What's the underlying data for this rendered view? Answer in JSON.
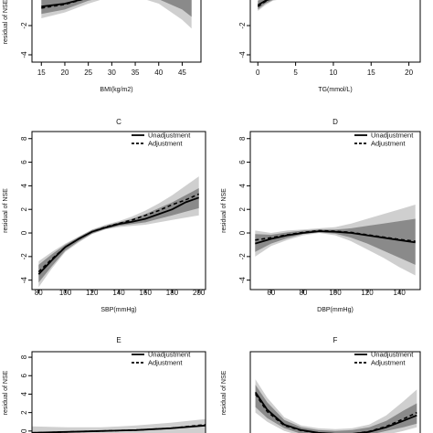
{
  "chart_data": [
    {
      "id": "A",
      "type": "line",
      "title": "",
      "xlabel": "BMI(kg/m2)",
      "ylabel": "residual of NSE",
      "xlim": [
        13,
        49
      ],
      "ylim": [
        -4.5,
        1
      ],
      "xticks": [
        "15",
        "20",
        "25",
        "30",
        "35",
        "40",
        "45"
      ],
      "yticks": [
        "-4",
        "-2",
        "0"
      ],
      "legend": null,
      "series": [
        {
          "name": "Unadjustment",
          "style": "solid",
          "x": [
            15,
            20,
            25,
            30,
            35,
            40,
            45,
            47
          ],
          "y": [
            -0.7,
            -0.5,
            -0.1,
            0.25,
            0.35,
            0.4,
            0.45,
            0.45
          ]
        },
        {
          "name": "Adjustment",
          "style": "dashed",
          "x": [
            15,
            20,
            25,
            30,
            35,
            40,
            45,
            47
          ],
          "y": [
            -0.8,
            -0.55,
            -0.1,
            0.2,
            0.2,
            0.15,
            0.05,
            0.0
          ]
        }
      ],
      "bands": [
        {
          "shade": "light",
          "x": [
            15,
            20,
            25,
            30,
            35,
            40,
            45,
            47
          ],
          "lower": [
            -1.5,
            -1.1,
            -0.5,
            0.0,
            0.0,
            -0.5,
            -1.6,
            -2.2
          ],
          "upper": [
            0.2,
            0.0,
            0.3,
            0.5,
            0.6,
            0.8,
            1.0,
            1.0
          ]
        },
        {
          "shade": "dark",
          "x": [
            15,
            20,
            25,
            30,
            35,
            40,
            45,
            47
          ],
          "lower": [
            -1.2,
            -0.9,
            -0.3,
            0.05,
            0.05,
            -0.2,
            -0.9,
            -1.4
          ],
          "upper": [
            -0.1,
            -0.2,
            0.1,
            0.4,
            0.5,
            0.6,
            0.8,
            0.9
          ]
        }
      ]
    },
    {
      "id": "B",
      "type": "line",
      "title": "",
      "xlabel": "TG(mmol/L)",
      "ylabel": "",
      "xlim": [
        -1,
        21.5
      ],
      "ylim": [
        -4.5,
        1
      ],
      "xticks": [
        "0",
        "5",
        "10",
        "15",
        "20"
      ],
      "yticks": [
        "-4",
        "-2",
        "0"
      ],
      "legend": null,
      "series": [
        {
          "name": "Unadjustment",
          "style": "solid",
          "x": [
            0,
            1,
            2,
            3,
            4,
            5,
            6,
            7,
            8
          ],
          "y": [
            -0.6,
            -0.3,
            -0.1,
            0.0,
            0.1,
            0.2,
            0.25,
            0.3,
            0.3
          ]
        },
        {
          "name": "Adjustment",
          "style": "dashed",
          "x": [
            0,
            1,
            2,
            3,
            4,
            5,
            6,
            7,
            8
          ],
          "y": [
            -0.7,
            -0.35,
            -0.1,
            0.05,
            0.15,
            0.25,
            0.3,
            0.35,
            0.35
          ]
        }
      ],
      "bands": [
        {
          "shade": "light",
          "x": [
            0,
            1,
            2,
            3,
            4,
            5,
            6,
            7,
            8
          ],
          "lower": [
            -1.0,
            -0.6,
            -0.3,
            -0.2,
            -0.1,
            0.0,
            0.0,
            0.0,
            0.0
          ],
          "upper": [
            -0.2,
            0.0,
            0.1,
            0.2,
            0.4,
            0.5,
            0.6,
            0.8,
            1.0
          ]
        },
        {
          "shade": "dark",
          "x": [
            0,
            1,
            2,
            3,
            4,
            5,
            6,
            7,
            8
          ],
          "lower": [
            -0.9,
            -0.5,
            -0.25,
            -0.1,
            0.0,
            0.1,
            0.1,
            0.1,
            0.1
          ],
          "upper": [
            -0.3,
            -0.1,
            0.05,
            0.15,
            0.3,
            0.4,
            0.5,
            0.6,
            0.7
          ]
        }
      ]
    },
    {
      "id": "C",
      "type": "line",
      "title": "C",
      "xlabel": "SBP(mmHg)",
      "ylabel": "residual of NSE",
      "xlim": [
        75,
        205
      ],
      "ylim": [
        -4.8,
        8.6
      ],
      "xticks": [
        "80",
        "100",
        "120",
        "140",
        "160",
        "180",
        "200"
      ],
      "yticks": [
        "-4",
        "-2",
        "0",
        "2",
        "4",
        "6",
        "8"
      ],
      "legend": {
        "position": "top-right",
        "entries": [
          "Unadjustment",
          "Adjustment"
        ]
      },
      "series": [
        {
          "name": "Unadjustment",
          "style": "solid",
          "x": [
            80,
            90,
            100,
            110,
            120,
            130,
            140,
            150,
            160,
            170,
            180,
            190,
            200
          ],
          "y": [
            -3.5,
            -2.3,
            -1.2,
            -0.5,
            0.1,
            0.45,
            0.75,
            0.95,
            1.2,
            1.6,
            2.0,
            2.6,
            3.0
          ]
        },
        {
          "name": "Adjustment",
          "style": "dashed",
          "x": [
            80,
            90,
            100,
            110,
            120,
            130,
            140,
            150,
            160,
            170,
            180,
            190,
            200
          ],
          "y": [
            -3.3,
            -2.2,
            -1.2,
            -0.5,
            0.1,
            0.5,
            0.8,
            1.1,
            1.5,
            1.9,
            2.4,
            2.8,
            3.3
          ]
        }
      ],
      "bands": [
        {
          "shade": "light",
          "x": [
            80,
            90,
            100,
            110,
            120,
            130,
            140,
            150,
            160,
            170,
            180,
            190,
            200
          ],
          "lower": [
            -4.6,
            -3.0,
            -1.6,
            -0.8,
            -0.1,
            0.3,
            0.5,
            0.6,
            0.7,
            0.9,
            1.1,
            1.3,
            1.5
          ],
          "upper": [
            -2.4,
            -1.6,
            -0.9,
            -0.3,
            0.3,
            0.7,
            1.0,
            1.4,
            1.9,
            2.5,
            3.2,
            4.0,
            4.8
          ]
        },
        {
          "shade": "dark",
          "x": [
            80,
            90,
            100,
            110,
            120,
            130,
            140,
            150,
            160,
            170,
            180,
            190,
            200
          ],
          "lower": [
            -4.2,
            -2.8,
            -1.5,
            -0.7,
            -0.05,
            0.35,
            0.6,
            0.75,
            0.9,
            1.2,
            1.5,
            1.8,
            2.1
          ],
          "upper": [
            -2.7,
            -1.8,
            -1.0,
            -0.35,
            0.25,
            0.6,
            0.9,
            1.2,
            1.6,
            2.1,
            2.6,
            3.2,
            3.8
          ]
        }
      ]
    },
    {
      "id": "D",
      "type": "line",
      "title": "D",
      "xlabel": "DBP(mmHg)",
      "ylabel": "residual of NSE",
      "xlim": [
        47,
        153
      ],
      "ylim": [
        -4.8,
        8.6
      ],
      "xticks": [
        "60",
        "80",
        "100",
        "120",
        "140"
      ],
      "yticks": [
        "-4",
        "-2",
        "0",
        "2",
        "4",
        "6",
        "8"
      ],
      "legend": {
        "position": "top-right",
        "entries": [
          "Unadjustment",
          "Adjustment"
        ]
      },
      "series": [
        {
          "name": "Unadjustment",
          "style": "solid",
          "x": [
            50,
            60,
            70,
            80,
            90,
            100,
            110,
            120,
            130,
            140,
            150
          ],
          "y": [
            -0.9,
            -0.5,
            -0.2,
            0.0,
            0.15,
            0.1,
            0.0,
            -0.2,
            -0.4,
            -0.6,
            -0.8
          ]
        },
        {
          "name": "Adjustment",
          "style": "dashed",
          "x": [
            50,
            60,
            70,
            80,
            90,
            100,
            110,
            120,
            130,
            140,
            150
          ],
          "y": [
            -0.6,
            -0.4,
            -0.15,
            0.05,
            0.2,
            0.15,
            0.05,
            -0.15,
            -0.35,
            -0.55,
            -0.7
          ]
        }
      ],
      "bands": [
        {
          "shade": "light",
          "x": [
            50,
            60,
            70,
            80,
            90,
            100,
            110,
            120,
            130,
            140,
            150
          ],
          "lower": [
            -2.0,
            -1.1,
            -0.6,
            -0.2,
            0.0,
            -0.2,
            -0.7,
            -1.4,
            -2.1,
            -2.9,
            -3.6
          ],
          "upper": [
            0.2,
            0.0,
            0.2,
            0.3,
            0.4,
            0.5,
            0.8,
            1.2,
            1.6,
            2.0,
            2.4
          ]
        },
        {
          "shade": "dark",
          "x": [
            50,
            60,
            70,
            80,
            90,
            100,
            110,
            120,
            130,
            140,
            150
          ],
          "lower": [
            -1.6,
            -0.9,
            -0.45,
            -0.1,
            0.05,
            -0.05,
            -0.4,
            -0.9,
            -1.5,
            -2.1,
            -2.7
          ],
          "upper": [
            -0.1,
            -0.15,
            0.05,
            0.2,
            0.3,
            0.3,
            0.4,
            0.6,
            0.8,
            1.0,
            1.2
          ]
        }
      ]
    },
    {
      "id": "E",
      "type": "line",
      "title": "E",
      "xlabel": "",
      "ylabel": "residual of NSE",
      "xlim": [
        0,
        10
      ],
      "ylim": [
        -1.8,
        8.6
      ],
      "xticks": [],
      "yticks": [
        "0",
        "2",
        "4",
        "6",
        "8"
      ],
      "legend": {
        "position": "top-right",
        "entries": [
          "Unadjustment",
          "Adjustment"
        ]
      },
      "series": [
        {
          "name": "Unadjustment",
          "style": "solid",
          "x": [
            0,
            2,
            4,
            6,
            8,
            10
          ],
          "y": [
            -0.2,
            -0.1,
            0.0,
            0.1,
            0.3,
            0.6
          ]
        },
        {
          "name": "Adjustment",
          "style": "dashed",
          "x": [
            0,
            2,
            4,
            6,
            8,
            10
          ],
          "y": [
            -0.2,
            -0.1,
            0.0,
            0.1,
            0.3,
            0.7
          ]
        }
      ],
      "bands": [
        {
          "shade": "light",
          "x": [
            0,
            2,
            4,
            6,
            8,
            10
          ],
          "lower": [
            -1.0,
            -0.6,
            -0.4,
            -0.4,
            -0.4,
            -0.3
          ],
          "upper": [
            0.5,
            0.4,
            0.4,
            0.6,
            0.9,
            1.3
          ]
        }
      ]
    },
    {
      "id": "F",
      "type": "line",
      "title": "F",
      "xlabel": "",
      "ylabel": "residual of NSE",
      "xlim": [
        0,
        10
      ],
      "ylim": [
        -1.8,
        8.6
      ],
      "xticks": [],
      "yticks": [],
      "legend": {
        "position": "top-right",
        "entries": [
          "Unadjustment",
          "Adjustment"
        ]
      },
      "series": [
        {
          "name": "Unadjustment",
          "style": "solid",
          "x": [
            0.3,
            1,
            2,
            3,
            4,
            5,
            6,
            7,
            8,
            9,
            9.8
          ],
          "y": [
            4.2,
            2.3,
            0.7,
            0.1,
            -0.2,
            -0.3,
            -0.3,
            -0.1,
            0.4,
            1.1,
            1.7
          ]
        },
        {
          "name": "Adjustment",
          "style": "dashed",
          "x": [
            0.3,
            1,
            2,
            3,
            4,
            5,
            6,
            7,
            8,
            9,
            9.8
          ],
          "y": [
            4.0,
            2.1,
            0.6,
            0.05,
            -0.2,
            -0.3,
            -0.3,
            -0.05,
            0.5,
            1.3,
            2.0
          ]
        }
      ],
      "bands": [
        {
          "shade": "light",
          "x": [
            0.3,
            1,
            2,
            3,
            4,
            5,
            6,
            7,
            8,
            9,
            9.8
          ],
          "lower": [
            2.0,
            1.0,
            0.0,
            -0.5,
            -0.7,
            -0.8,
            -0.8,
            -0.7,
            -0.4,
            0.0,
            0.4
          ],
          "upper": [
            5.6,
            3.6,
            1.5,
            0.6,
            0.3,
            0.2,
            0.3,
            0.7,
            1.7,
            3.2,
            4.5
          ]
        },
        {
          "shade": "dark",
          "x": [
            0.3,
            1,
            2,
            3,
            4,
            5,
            6,
            7,
            8,
            9,
            9.8
          ],
          "lower": [
            2.6,
            1.4,
            0.3,
            -0.3,
            -0.5,
            -0.6,
            -0.6,
            -0.4,
            0.0,
            0.4,
            0.8
          ],
          "upper": [
            5.0,
            3.1,
            1.2,
            0.4,
            0.1,
            0.0,
            0.1,
            0.4,
            1.1,
            2.2,
            3.0
          ]
        }
      ]
    }
  ],
  "colors": {
    "band_light": "#cfcfcf",
    "band_dark": "#8a8a8a",
    "line": "#000000",
    "axis": "#000000"
  }
}
